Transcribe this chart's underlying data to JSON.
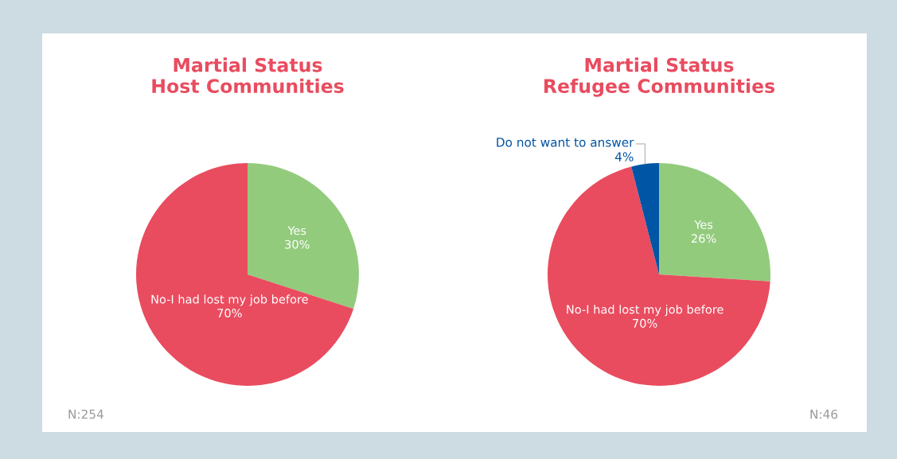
{
  "chart_data": [
    {
      "type": "pie",
      "title": "Martial Status\nHost Communities",
      "categories": [
        "Yes",
        "No-I had lost my job before"
      ],
      "values": [
        30,
        70
      ],
      "value_labels": [
        "30%",
        "70%"
      ],
      "colors": [
        "#93cb7d",
        "#e94c5f"
      ],
      "annotations": [
        "N:254"
      ]
    },
    {
      "type": "pie",
      "title": "Martial Status\nRefugee Communities",
      "categories": [
        "Yes",
        "No-I had lost my job before",
        "Do not want to answer"
      ],
      "values": [
        26,
        70,
        4
      ],
      "value_labels": [
        "26%",
        "70%",
        "4%"
      ],
      "colors": [
        "#93cb7d",
        "#e94c5f",
        "#0055a5"
      ],
      "annotations": [
        "N:46"
      ]
    }
  ]
}
